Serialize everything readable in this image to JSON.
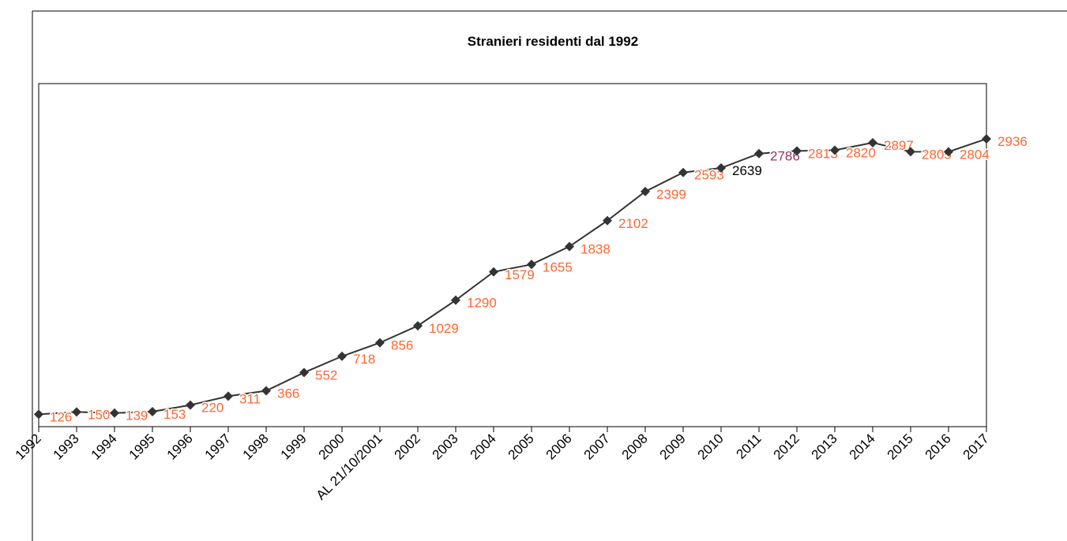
{
  "chart_data": {
    "type": "line",
    "title": "Stranieri residenti dal 1992",
    "categories": [
      "1992",
      "1993",
      "1994",
      "1995",
      "1996",
      "1997",
      "1998",
      "1999",
      "2000",
      "AL 21/10/2001",
      "2002",
      "2003",
      "2004",
      "2005",
      "2006",
      "2007",
      "2008",
      "2009",
      "2010",
      "2011",
      "2012",
      "2013",
      "2014",
      "2015",
      "2016",
      "2017"
    ],
    "series": [
      {
        "name": "Stranieri residenti",
        "color": "#333333",
        "values": [
          126,
          150,
          139,
          153,
          220,
          311,
          366,
          552,
          718,
          856,
          1029,
          1290,
          1579,
          1655,
          1838,
          2102,
          2399,
          2593,
          2639,
          2786,
          2813,
          2820,
          2897,
          2805,
          2804,
          2936
        ]
      }
    ],
    "label_colors": [
      "#ff6633",
      "#ff6633",
      "#ff6633",
      "#ff6633",
      "#ff6633",
      "#ff6633",
      "#ff6633",
      "#ff6633",
      "#ff6633",
      "#ff6633",
      "#ff6633",
      "#ff6633",
      "#ff6633",
      "#ff6633",
      "#ff6633",
      "#ff6633",
      "#ff6633",
      "#ff6633",
      "#000000",
      "#993366",
      "#ff6633",
      "#ff6633",
      "#ff6633",
      "#ff6633",
      "#ff6633",
      "#ff6633"
    ],
    "ylim": [
      0,
      3500
    ]
  }
}
